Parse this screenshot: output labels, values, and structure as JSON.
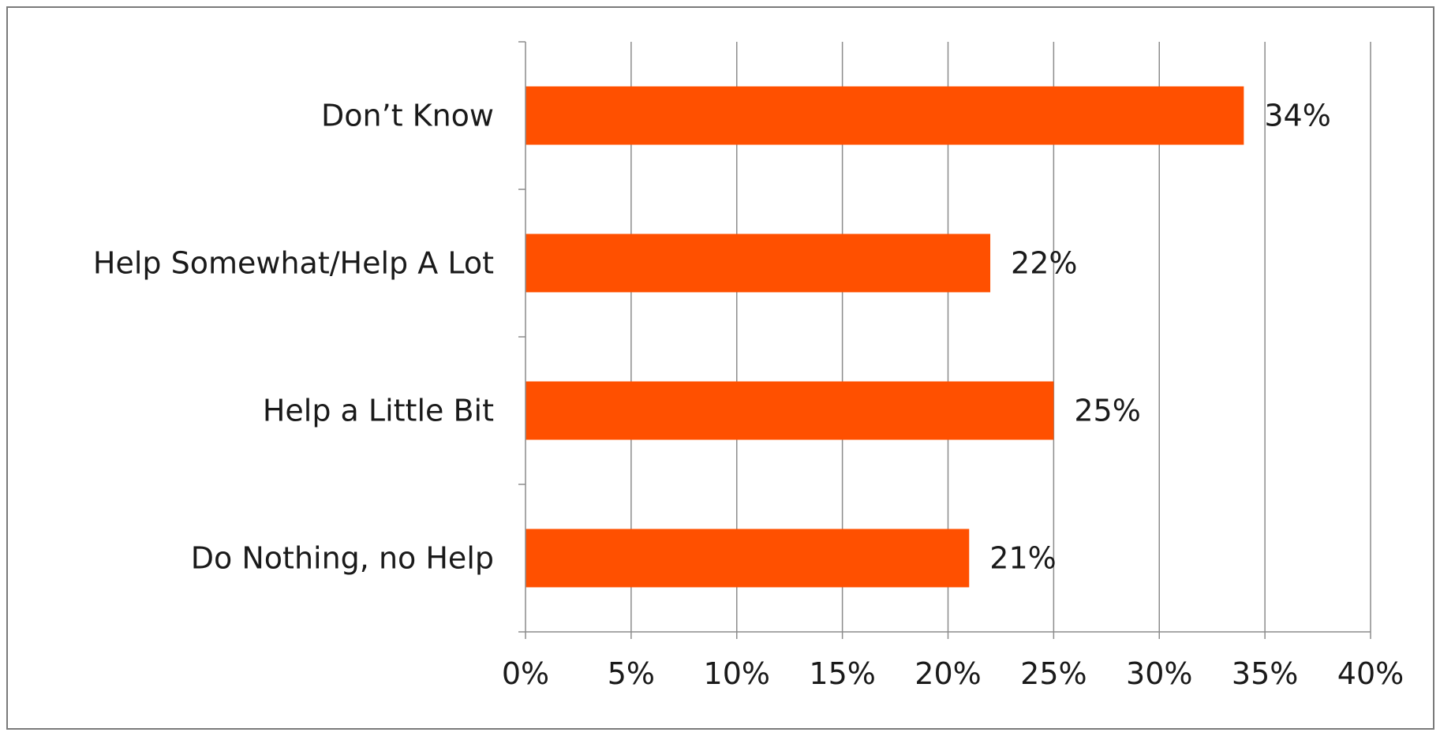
{
  "chart_data": {
    "type": "bar",
    "orientation": "horizontal",
    "categories": [
      "Don’t Know",
      "Help Somewhat/Help A  Lot",
      "Help a Little Bit",
      "Do Nothing, no Help"
    ],
    "values": [
      34,
      22,
      25,
      21
    ],
    "value_labels": [
      "34%",
      "22%",
      "25%",
      "21%"
    ],
    "xlim": [
      0,
      40
    ],
    "x_ticks": [
      0,
      5,
      10,
      15,
      20,
      25,
      30,
      35,
      40
    ],
    "x_tick_labels": [
      "0%",
      "5%",
      "10%",
      "15%",
      "20%",
      "25%",
      "30%",
      "35%",
      "40%"
    ],
    "grid": "vertical",
    "legend": "none",
    "bar_color": "#ff5000"
  }
}
